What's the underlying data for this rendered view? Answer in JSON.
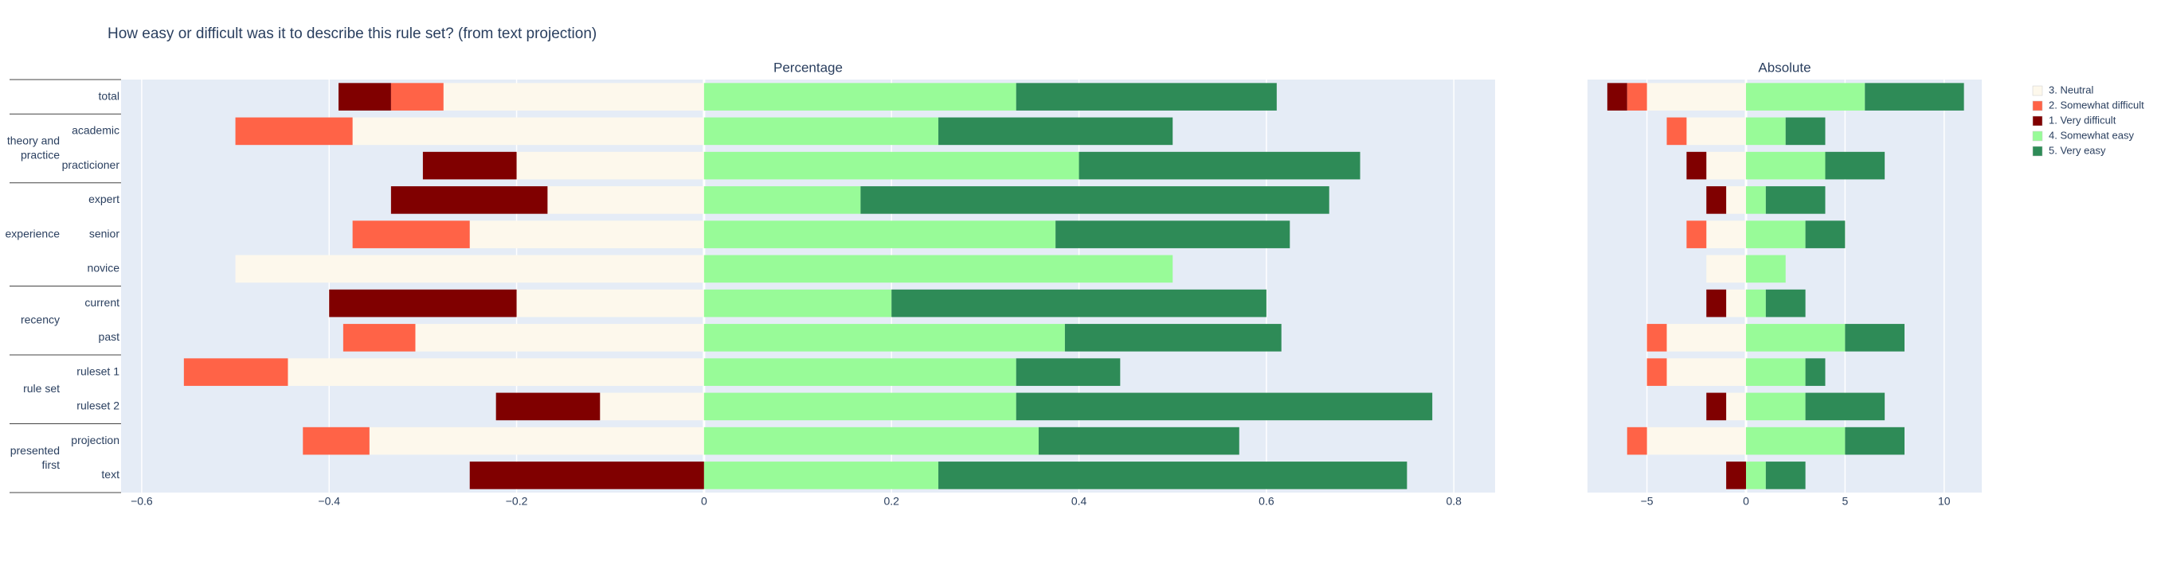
{
  "chart_data": [
    {
      "type": "bar",
      "orientation": "h",
      "title": "How easy or difficult was it to describe this rule set? (from text projection)",
      "subplot_title": "Percentage",
      "categories": [
        "total",
        "academic",
        "practicioner",
        "expert",
        "senior",
        "novice",
        "current",
        "past",
        "ruleset 1",
        "ruleset 2",
        "projection",
        "text"
      ],
      "groups": [
        null,
        "theory and practice",
        "theory and practice",
        "experience",
        "experience",
        "experience",
        "recency",
        "recency",
        "rule set",
        "rule set",
        "presented first",
        "presented first"
      ],
      "xlim": [
        -0.622,
        0.844
      ],
      "xticks": [
        {
          "value": -0.6,
          "label": "−0.6"
        },
        {
          "value": -0.4,
          "label": "−0.4"
        },
        {
          "value": -0.2,
          "label": "−0.2"
        },
        0,
        0.2,
        0.4,
        0.6,
        0.8
      ],
      "grid": true,
      "series": [
        {
          "name": "3. Neutral",
          "color": "#fdf8ec",
          "values": [
            -0.278,
            -0.375,
            -0.2,
            -0.167,
            -0.25,
            -0.5,
            -0.2,
            -0.308,
            -0.444,
            -0.111,
            -0.357,
            0
          ]
        },
        {
          "name": "2. Somewhat difficult",
          "color": "#ff6347",
          "values": [
            -0.056,
            -0.125,
            0,
            0,
            -0.125,
            0,
            0,
            -0.077,
            -0.111,
            0,
            -0.071,
            0
          ]
        },
        {
          "name": "1. Very difficult",
          "color": "#800000",
          "values": [
            -0.056,
            0,
            -0.1,
            -0.167,
            0,
            0,
            -0.2,
            0,
            0,
            -0.111,
            0,
            -0.25
          ]
        },
        {
          "name": "4. Somewhat easy",
          "color": "#98fb98",
          "values": [
            0.333,
            0.25,
            0.4,
            0.167,
            0.375,
            0.5,
            0.2,
            0.385,
            0.333,
            0.333,
            0.357,
            0.25
          ]
        },
        {
          "name": "5. Very easy",
          "color": "#2e8b57",
          "values": [
            0.278,
            0.25,
            0.3,
            0.5,
            0.25,
            0,
            0.4,
            0.231,
            0.111,
            0.444,
            0.214,
            0.5
          ]
        }
      ]
    },
    {
      "type": "bar",
      "orientation": "h",
      "subplot_title": "Absolute",
      "xlim": [
        -8,
        11.9
      ],
      "xticks": [
        {
          "value": -5,
          "label": "−5"
        },
        0,
        5,
        10
      ],
      "grid": true,
      "series": [
        {
          "color": "#fdf8ec",
          "values": [
            -5,
            -3,
            -2,
            -1,
            -2,
            -2,
            -1,
            -4,
            -4,
            -1,
            -5,
            0
          ]
        },
        {
          "color": "#ff6347",
          "values": [
            -1,
            -1,
            0,
            0,
            -1,
            0,
            0,
            -1,
            -1,
            0,
            -1,
            0
          ]
        },
        {
          "color": "#800000",
          "values": [
            -1,
            0,
            -1,
            -1,
            0,
            0,
            -1,
            0,
            0,
            -1,
            0,
            -1
          ]
        },
        {
          "color": "#98fb98",
          "values": [
            6,
            2,
            4,
            1,
            3,
            2,
            1,
            5,
            3,
            3,
            5,
            1
          ]
        },
        {
          "color": "#2e8b57",
          "values": [
            5,
            2,
            3,
            3,
            2,
            0,
            2,
            3,
            1,
            4,
            3,
            2
          ]
        }
      ]
    }
  ]
}
